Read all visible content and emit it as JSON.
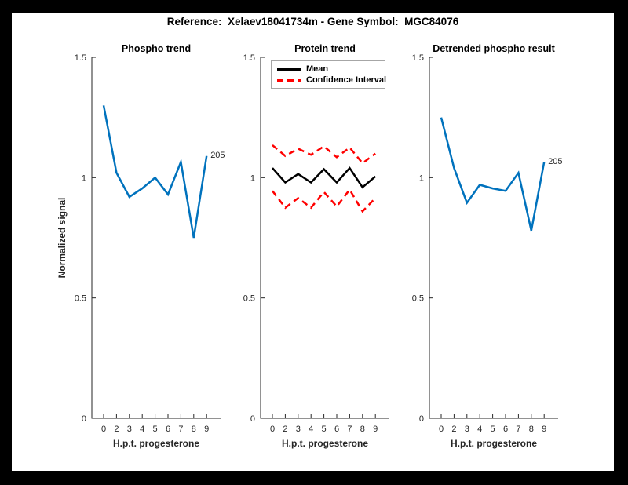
{
  "figure": {
    "title": "Reference:  Xelaev18041734m - Gene Symbol:  MGC84076",
    "background": "#ffffff",
    "border_color": "#000000"
  },
  "colors": {
    "axis": "#262626",
    "blue": "#0072bd",
    "black": "#000000",
    "red": "#ff0000",
    "legend_border": "#a6a6a6"
  },
  "chart_data": [
    {
      "type": "line",
      "title": "Phospho trend",
      "xlabel": "H.p.t. progesterone",
      "ylabel": "Normalized signal",
      "x_tick_labels": [
        "0",
        "2",
        "3",
        "4",
        "5",
        "6",
        "7",
        "8",
        "9"
      ],
      "y_tick_values": [
        0,
        0.5,
        1,
        1.5
      ],
      "y_tick_labels": [
        "0",
        "0.5",
        "1",
        "1.5"
      ],
      "ylim": [
        0,
        1.5
      ],
      "grid": false,
      "end_label": "205",
      "series": [
        {
          "name": "phospho-signal",
          "color": "#0072bd",
          "style": "solid",
          "values": [
            1.3,
            1.02,
            0.92,
            0.955,
            1.0,
            0.93,
            1.065,
            0.75,
            1.09
          ]
        }
      ]
    },
    {
      "type": "line",
      "title": "Protein trend",
      "xlabel": "H.p.t. progesterone",
      "ylabel": "",
      "x_tick_labels": [
        "0",
        "2",
        "3",
        "4",
        "5",
        "6",
        "7",
        "8",
        "9"
      ],
      "y_tick_values": [
        0,
        0.5,
        1,
        1.5
      ],
      "y_tick_labels": [
        "0",
        "0.5",
        "1",
        "1.5"
      ],
      "ylim": [
        0,
        1.5
      ],
      "grid": false,
      "legend": {
        "position": "northwest",
        "entries": [
          {
            "label": "Mean",
            "color": "#000000",
            "style": "solid"
          },
          {
            "label": "Confidence Interval",
            "color": "#ff0000",
            "style": "dashed"
          }
        ]
      },
      "series": [
        {
          "name": "mean",
          "color": "#000000",
          "style": "solid",
          "values": [
            1.04,
            0.98,
            1.015,
            0.98,
            1.035,
            0.98,
            1.04,
            0.96,
            1.005
          ]
        },
        {
          "name": "ci-upper",
          "color": "#ff0000",
          "style": "dashed",
          "values": [
            1.135,
            1.09,
            1.12,
            1.095,
            1.13,
            1.085,
            1.125,
            1.06,
            1.1
          ]
        },
        {
          "name": "ci-lower",
          "color": "#ff0000",
          "style": "dashed",
          "values": [
            0.945,
            0.875,
            0.915,
            0.875,
            0.94,
            0.88,
            0.95,
            0.86,
            0.915
          ]
        }
      ]
    },
    {
      "type": "line",
      "title": "Detrended phospho result",
      "xlabel": "H.p.t. progesterone",
      "ylabel": "",
      "x_tick_labels": [
        "0",
        "2",
        "3",
        "4",
        "5",
        "6",
        "7",
        "8",
        "9"
      ],
      "y_tick_values": [
        0,
        0.5,
        1,
        1.5
      ],
      "y_tick_labels": [
        "0",
        "0.5",
        "1",
        "1.5"
      ],
      "ylim": [
        0,
        1.5
      ],
      "grid": false,
      "end_label": "205",
      "series": [
        {
          "name": "detrended-phospho",
          "color": "#0072bd",
          "style": "solid",
          "values": [
            1.25,
            1.04,
            0.895,
            0.97,
            0.955,
            0.945,
            1.02,
            0.78,
            1.065
          ]
        }
      ]
    }
  ]
}
